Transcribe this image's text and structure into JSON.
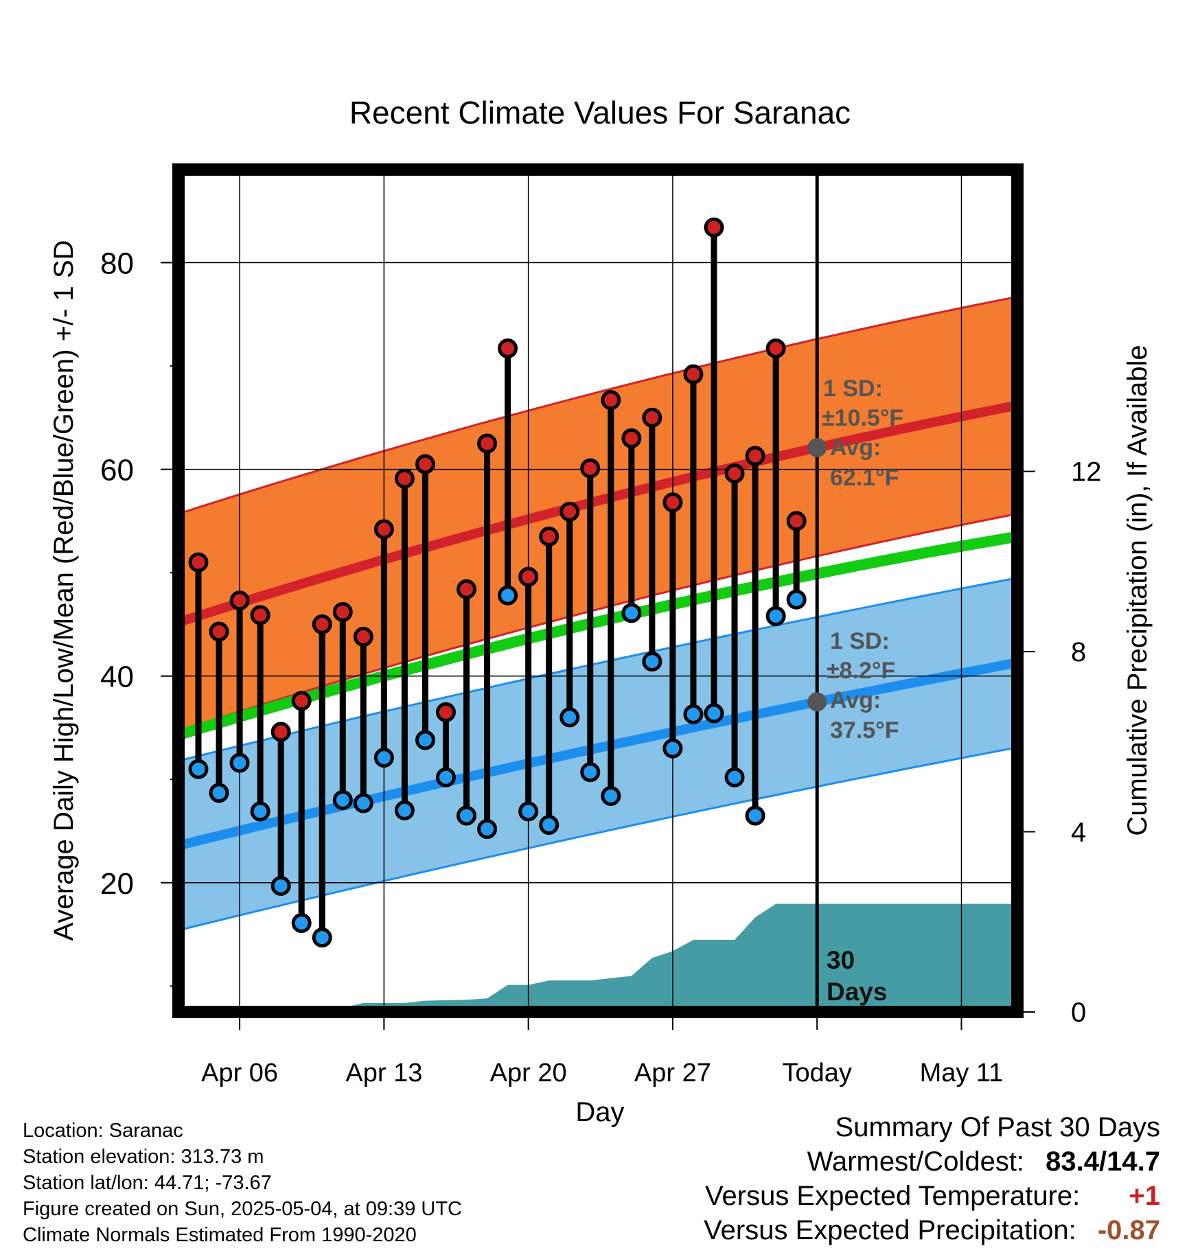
{
  "chart_data": {
    "type": "line",
    "title": "Recent Climate Values For Saranac",
    "xlabel": "Day",
    "ylabel": "Average Daily High/Low/Mean (Red/Blue/Green) +/- 1 SD",
    "y2label": "Cumulative Precipitation (in), If Available",
    "ylim": [
      7.5,
      89
    ],
    "y_ticks": [
      20,
      40,
      60,
      80
    ],
    "y2lim": [
      0,
      18.7
    ],
    "y2_ticks": [
      0,
      4,
      8,
      12
    ],
    "x_ticks": [
      "Apr 06",
      "Apr 13",
      "Apr 20",
      "Apr 27",
      "Today",
      "May 11"
    ],
    "grid": true,
    "days": [
      "2025-04-04",
      "2025-04-05",
      "2025-04-06",
      "2025-04-07",
      "2025-04-08",
      "2025-04-09",
      "2025-04-10",
      "2025-04-11",
      "2025-04-12",
      "2025-04-13",
      "2025-04-14",
      "2025-04-15",
      "2025-04-16",
      "2025-04-17",
      "2025-04-18",
      "2025-04-19",
      "2025-04-20",
      "2025-04-21",
      "2025-04-22",
      "2025-04-23",
      "2025-04-24",
      "2025-04-25",
      "2025-04-26",
      "2025-04-27",
      "2025-04-28",
      "2025-04-29",
      "2025-04-30",
      "2025-05-01",
      "2025-05-02",
      "2025-05-03"
    ],
    "highs": [
      51,
      44.3,
      47.3,
      45.9,
      34.6,
      37.6,
      45,
      46.2,
      43.8,
      54.2,
      59.1,
      60.5,
      36.5,
      48.4,
      62.5,
      71.7,
      49.6,
      53.5,
      55.9,
      60.1,
      66.7,
      63,
      65,
      56.8,
      69.2,
      83.4,
      59.6,
      61.3,
      71.7,
      55
    ],
    "lows": [
      31,
      28.7,
      31.6,
      26.9,
      19.7,
      16.1,
      14.7,
      28,
      27.7,
      32.1,
      27,
      33.8,
      30.2,
      26.5,
      25.2,
      47.8,
      26.9,
      25.6,
      36,
      30.7,
      28.4,
      46.1,
      41.4,
      33,
      36.3,
      36.4,
      30.2,
      26.5,
      45.8,
      47.4
    ],
    "normal_high_avg": {
      "start": 45.2,
      "today": 62.1,
      "end": 66.2
    },
    "normal_high_sd": 10.5,
    "normal_low_avg": {
      "start": 23.6,
      "today": 37.5,
      "end": 41.3
    },
    "normal_low_sd": 8.2,
    "normal_mean": {
      "start": 34.3,
      "today": 49.9,
      "end": 53.5
    },
    "precip_cumulative": [
      0,
      0,
      0,
      0,
      0.05,
      0.08,
      0.08,
      0.09,
      0.09,
      0.2,
      0.2,
      0.2,
      0.25,
      0.26,
      0.27,
      0.3,
      0.6,
      0.6,
      0.7,
      0.7,
      0.7,
      0.75,
      0.8,
      1.2,
      1.35,
      1.6,
      1.6,
      1.6,
      2.1,
      2.4,
      2.4
    ],
    "annotations": {
      "high_sd_label": "1 SD:",
      "high_sd_value": "±10.5°F",
      "high_avg_label": "Avg:",
      "high_avg_value": "62.1°F",
      "low_sd_label": "1 SD:",
      "low_sd_value": "±8.2°F",
      "low_avg_label": "Avg:",
      "low_avg_value": "37.5°F",
      "window_label": "30",
      "window_label2": "Days"
    },
    "colors": {
      "high_band": "#f47c30",
      "high_line": "#d2232a",
      "low_band": "#87c3e8",
      "low_line": "#1c8fee",
      "mean_line": "#11cc11",
      "precip": "#469ca4",
      "high_dot": "#cc2222",
      "low_dot": "#2299ee",
      "avg_marker": "#555555"
    }
  },
  "info": {
    "location": "Location: Saranac",
    "elevation": "Station elevation: 313.73 m",
    "latlon": "Station lat/lon: 44.71; -73.67",
    "created": "Figure created on Sun, 2025-05-04, at 09:39 UTC",
    "normals": "Climate Normals Estimated From 1990-2020"
  },
  "summary": {
    "title": "Summary Of Past 30 Days",
    "warm_cold_label": "Warmest/Coldest:",
    "warm_cold_value": "83.4/14.7",
    "temp_label": "Versus Expected Temperature:",
    "temp_value": "+1",
    "temp_color": "#cc2222",
    "precip_label": "Versus Expected Precipitation:",
    "precip_value": "-0.87",
    "precip_color": "#a0522d"
  }
}
